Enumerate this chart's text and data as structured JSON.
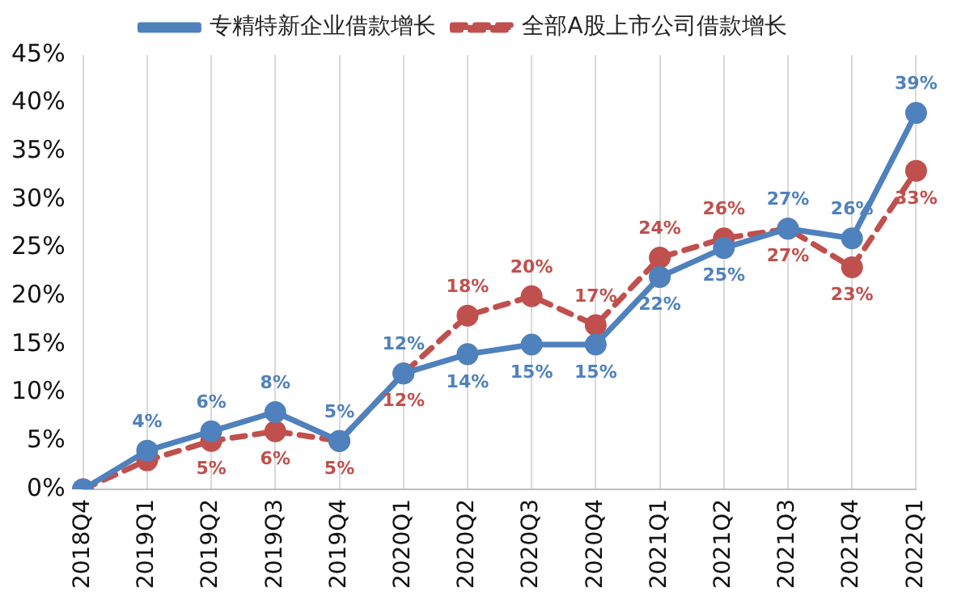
{
  "chart_data": {
    "type": "line",
    "categories": [
      "2018Q4",
      "2019Q1",
      "2019Q2",
      "2019Q3",
      "2019Q4",
      "2020Q1",
      "2020Q2",
      "2020Q3",
      "2020Q4",
      "2021Q1",
      "2021Q2",
      "2021Q3",
      "2021Q4",
      "2022Q1"
    ],
    "series": [
      {
        "name": "专精特新企业借款增长",
        "color": "#4f81bd",
        "line_style": "solid",
        "values": [
          0,
          4,
          6,
          8,
          5,
          12,
          14,
          15,
          15,
          22,
          25,
          27,
          26,
          39
        ],
        "value_labels": [
          null,
          "4%",
          "6%",
          "8%",
          "5%",
          "12%",
          "14%",
          "15%",
          "15%",
          "22%",
          "25%",
          "27%",
          "26%",
          "39%"
        ]
      },
      {
        "name": "全部A股上市公司借款增长",
        "color": "#c0504d",
        "line_style": "dashed",
        "values": [
          0,
          3,
          5,
          6,
          5,
          12,
          18,
          20,
          17,
          24,
          26,
          27,
          23,
          33
        ],
        "value_labels": [
          null,
          null,
          "5%",
          "6%",
          "5%",
          "12%",
          "18%",
          "20%",
          "17%",
          "24%",
          "26%",
          "27%",
          "23%",
          "33%"
        ]
      }
    ],
    "ylim": [
      0,
      45
    ],
    "yticks": [
      {
        "value": 0,
        "label": "0%"
      },
      {
        "value": 5,
        "label": "5%"
      },
      {
        "value": 10,
        "label": "10%"
      },
      {
        "value": 15,
        "label": "15%"
      },
      {
        "value": 20,
        "label": "20%"
      },
      {
        "value": 25,
        "label": "25%"
      },
      {
        "value": 30,
        "label": "30%"
      },
      {
        "value": 35,
        "label": "35%"
      },
      {
        "value": 40,
        "label": "40%"
      },
      {
        "value": 45,
        "label": "45%"
      }
    ],
    "grid": "x",
    "legend": "top",
    "marker": "circle"
  }
}
